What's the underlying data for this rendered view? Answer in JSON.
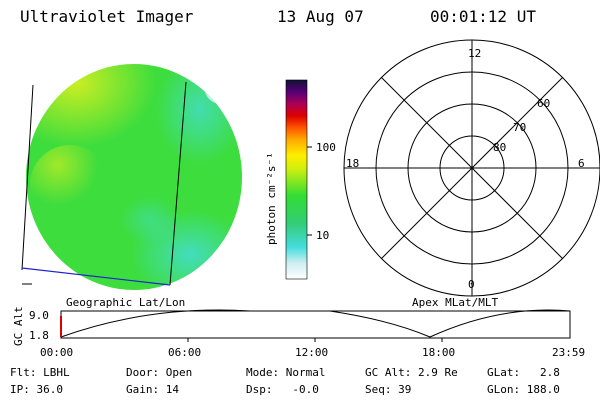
{
  "header": {
    "instrument": "Ultraviolet Imager",
    "date": "13 Aug 07",
    "time": "00:01:12 UT"
  },
  "colorbar": {
    "unit_label": "photon cm⁻²s⁻¹",
    "ticks": [
      "100",
      "10"
    ]
  },
  "geo_panel": {
    "label": "Geographic Lat/Lon"
  },
  "polar_panel": {
    "label": "Apex MLat/MLT",
    "mlt_labels": {
      "top": "12",
      "left": "18",
      "right": "6",
      "bottom": "0"
    },
    "lat_labels": [
      "60",
      "70",
      "80"
    ]
  },
  "altitude_plot": {
    "ylabel": "GC Alt",
    "y_ticks": [
      "9.0",
      "1.8"
    ],
    "x_ticks": [
      "00:00",
      "06:00",
      "12:00",
      "18:00",
      "23:59"
    ]
  },
  "status": {
    "flt": "Flt: LBHL",
    "ip": "IP: 36.0",
    "door": "Door: Open",
    "gain": "Gain: 14",
    "mode": "Mode: Normal",
    "dsp": "Dsp:   -0.0",
    "gc_alt": "GC Alt: 2.9 Re",
    "seq": "Seq: 39",
    "glat": "GLat:   2.8",
    "glon": "GLon: 188.0"
  },
  "colors": {
    "disk_green": "#33dd33",
    "disk_yellow": "#ccee22",
    "disk_cyan": "#44ddcc",
    "geo_line_blue": "#2222cc"
  }
}
